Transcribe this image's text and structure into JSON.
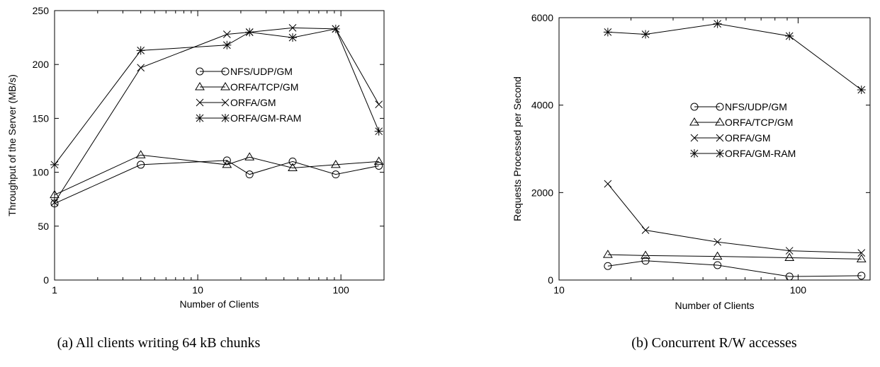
{
  "chart_data": [
    {
      "type": "line",
      "caption": "(a) All clients writing 64 kB chunks",
      "xlabel": "Number of Clients",
      "ylabel": "Throughput of the Server (MB/s)",
      "xscale": "log",
      "xlim": [
        1,
        200
      ],
      "ylim": [
        0,
        250
      ],
      "xticks": [
        1,
        10,
        100
      ],
      "xtick_labels": [
        "1",
        "10",
        "100"
      ],
      "yticks": [
        0,
        50,
        100,
        150,
        200,
        250
      ],
      "ytick_labels": [
        "0",
        "50",
        "100",
        "150",
        "200",
        "250"
      ],
      "legend_position": "center-right",
      "series": [
        {
          "name": "NFS/UDP/GM",
          "marker": "circle",
          "x": [
            1,
            4,
            16,
            23,
            46,
            92,
            184
          ],
          "values": [
            71,
            107,
            111,
            98,
            110,
            98,
            106
          ]
        },
        {
          "name": "ORFA/TCP/GM",
          "marker": "triangle",
          "x": [
            1,
            4,
            16,
            23,
            46,
            92,
            184
          ],
          "values": [
            79,
            116,
            107,
            114,
            104,
            107,
            110
          ]
        },
        {
          "name": "ORFA/GM",
          "marker": "x",
          "x": [
            1,
            4,
            16,
            23,
            46,
            92,
            184
          ],
          "values": [
            72,
            197,
            228,
            230,
            234,
            233,
            163
          ]
        },
        {
          "name": "ORFA/GM-RAM",
          "marker": "star",
          "x": [
            1,
            4,
            16,
            23,
            46,
            92,
            184
          ],
          "values": [
            107,
            213,
            218,
            230,
            225,
            233,
            138
          ]
        }
      ]
    },
    {
      "type": "line",
      "caption": "(b) Concurrent R/W accesses",
      "xlabel": "Number of Clients",
      "ylabel": "Requests Processed per Second",
      "xscale": "log",
      "xlim": [
        10,
        200
      ],
      "ylim": [
        0,
        6000
      ],
      "xticks": [
        10,
        100
      ],
      "xtick_labels": [
        "10",
        "100"
      ],
      "yticks": [
        0,
        2000,
        4000,
        6000
      ],
      "ytick_labels": [
        "0",
        "2000",
        "4000",
        "6000"
      ],
      "legend_position": "center-right",
      "series": [
        {
          "name": "NFS/UDP/GM",
          "marker": "circle",
          "x": [
            16,
            23,
            46,
            92,
            184
          ],
          "values": [
            320,
            440,
            340,
            80,
            100
          ]
        },
        {
          "name": "ORFA/TCP/GM",
          "marker": "triangle",
          "x": [
            16,
            23,
            46,
            92,
            184
          ],
          "values": [
            580,
            560,
            540,
            510,
            480
          ]
        },
        {
          "name": "ORFA/GM",
          "marker": "x",
          "x": [
            16,
            23,
            46,
            92,
            184
          ],
          "values": [
            2200,
            1140,
            870,
            670,
            620
          ]
        },
        {
          "name": "ORFA/GM-RAM",
          "marker": "star",
          "x": [
            16,
            23,
            46,
            92,
            184
          ],
          "values": [
            5670,
            5620,
            5860,
            5580,
            4350
          ]
        }
      ]
    }
  ]
}
